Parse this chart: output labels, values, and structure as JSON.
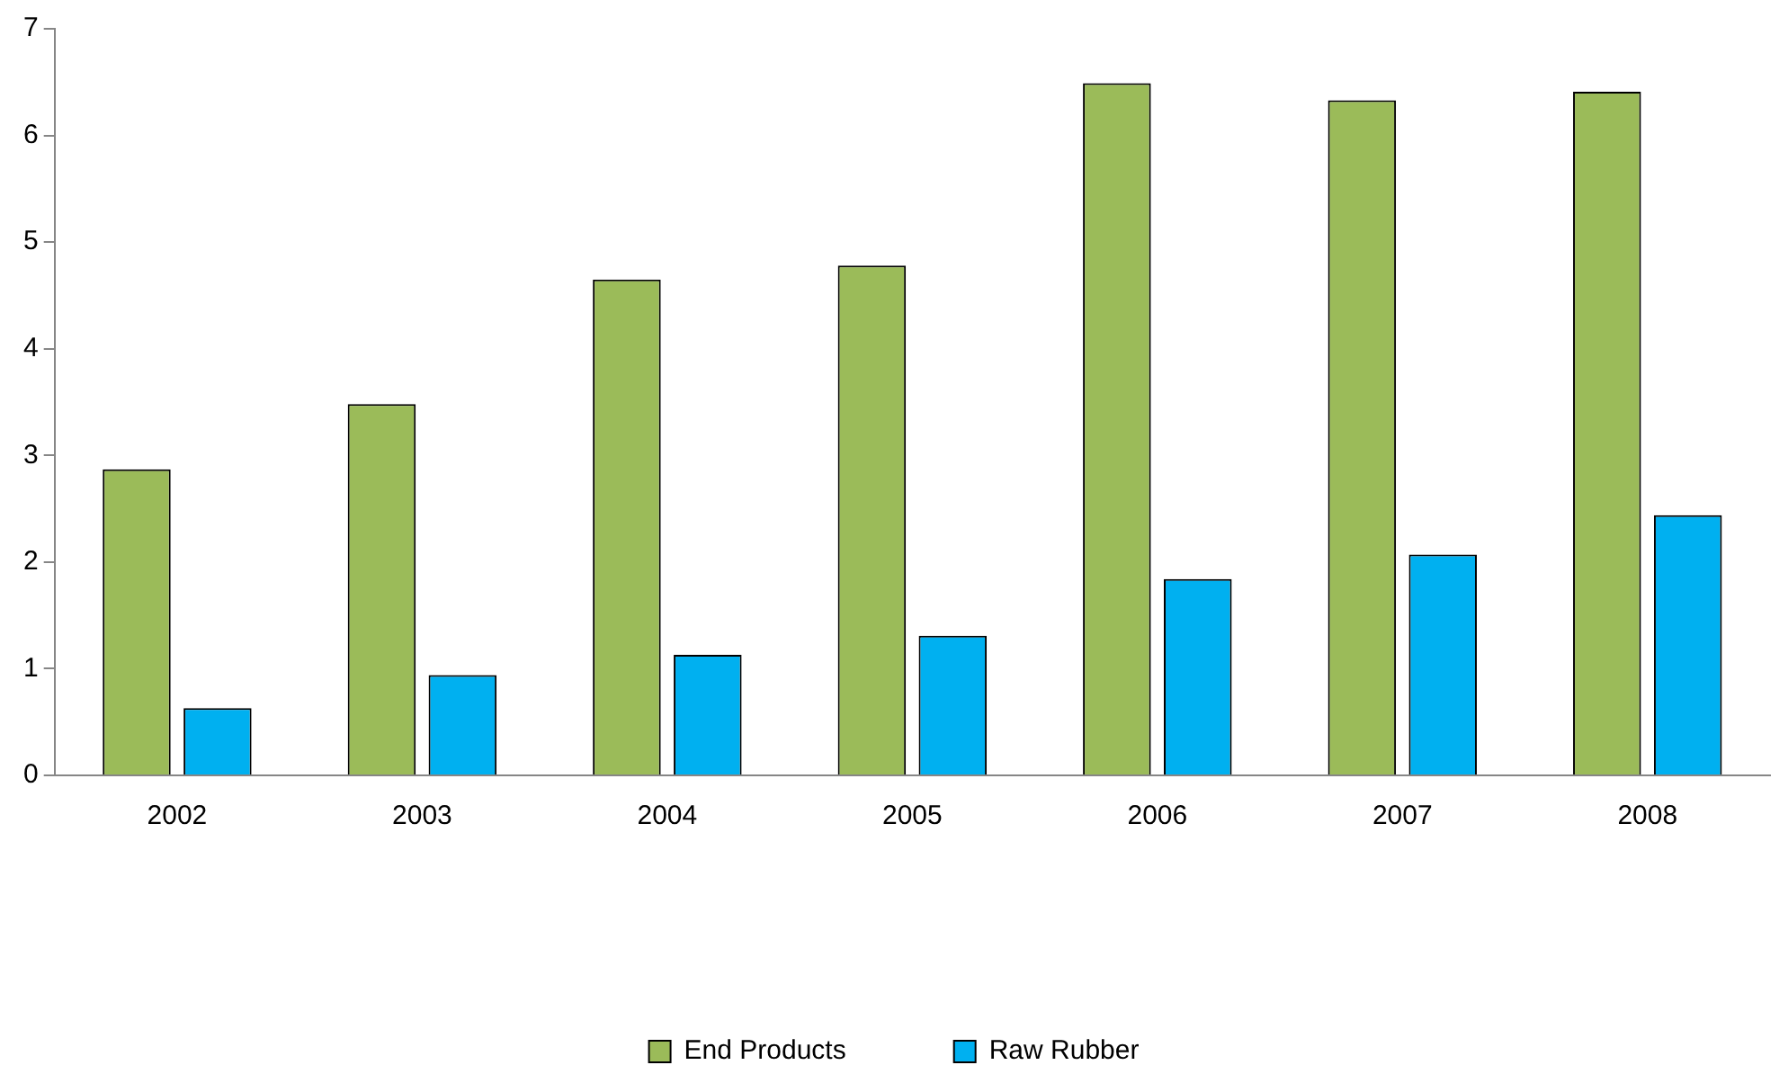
{
  "chart_data": {
    "type": "bar",
    "categories": [
      "2002",
      "2003",
      "2004",
      "2005",
      "2006",
      "2007",
      "2008"
    ],
    "series": [
      {
        "name": "End Products",
        "color": "#9bbb59",
        "values": [
          2.87,
          3.48,
          4.65,
          4.78,
          6.49,
          6.33,
          6.41
        ]
      },
      {
        "name": "Raw Rubber",
        "color": "#00b0f0",
        "values": [
          0.63,
          0.94,
          1.13,
          1.31,
          1.84,
          2.07,
          2.44
        ]
      }
    ],
    "ylim": [
      0,
      7
    ],
    "yticks": [
      0,
      1,
      2,
      3,
      4,
      5,
      6,
      7
    ],
    "grid": false,
    "legend": "bottom"
  }
}
